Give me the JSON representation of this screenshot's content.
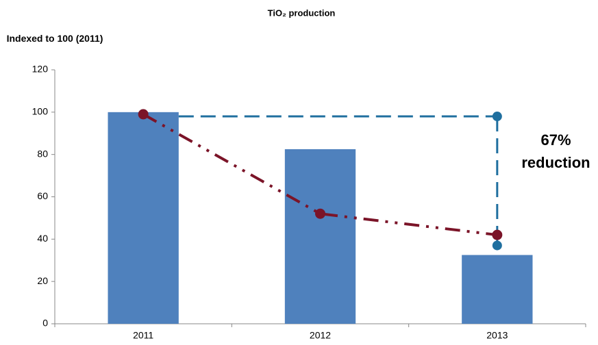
{
  "chart_data": {
    "type": "bar",
    "title": "TiO₂ production",
    "y_label": "Indexed to 100 (2011)",
    "categories": [
      "2011",
      "2012",
      "2013"
    ],
    "values": [
      100,
      82.5,
      32.5
    ],
    "color": "#4f81bd",
    "line": {
      "color": "#7b1428",
      "values": [
        99,
        52,
        42
      ]
    },
    "reference": {
      "color": "#1f6f9f",
      "values": [
        98,
        37
      ]
    },
    "annotation": "67% reduction",
    "ylim": [
      0,
      120
    ],
    "yticks": [
      0,
      20,
      40,
      60,
      80,
      100,
      120
    ],
    "grid": false
  }
}
